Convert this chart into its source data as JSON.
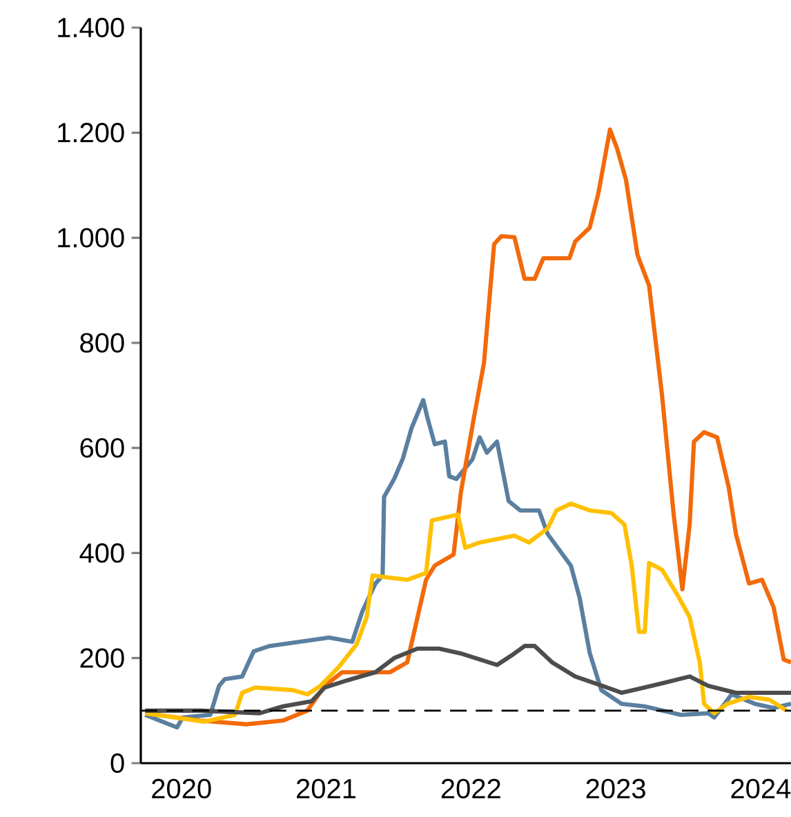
{
  "chart_data": {
    "type": "line",
    "xlim": [
      2019.72,
      2024.21
    ],
    "ylim": [
      0,
      1400
    ],
    "xticks": [
      2020,
      2021,
      2022,
      2023,
      2024
    ],
    "yticks": [
      0,
      200,
      400,
      600,
      800,
      {
        "value": 1000,
        "label": "1.000"
      },
      {
        "value": 1200,
        "label": "1.200"
      },
      {
        "value": 1400,
        "label": "1.400"
      }
    ],
    "grid": false,
    "ref_lines": [
      {
        "axis": "y",
        "value": 100,
        "color": "#000000",
        "line_style": "dashed"
      }
    ],
    "series": [
      {
        "color": "#5a7fa0",
        "x": [
          2019.75,
          2019.97,
          2020.01,
          2020.2,
          2020.26,
          2020.3,
          2020.42,
          2020.5,
          2020.61,
          2021.02,
          2021.18,
          2021.25,
          2021.34,
          2021.39,
          2021.4,
          2021.47,
          2021.53,
          2021.59,
          2021.67,
          2021.7,
          2021.75,
          2021.82,
          2021.85,
          2021.9,
          2022.01,
          2022.06,
          2022.11,
          2022.18,
          2022.26,
          2022.34,
          2022.47,
          2022.53,
          2022.69,
          2022.75,
          2022.82,
          2022.9,
          2023.04,
          2023.2,
          2023.45,
          2023.64,
          2023.68,
          2023.8,
          2023.96,
          2024.09,
          2024.21
        ],
        "values": [
          92,
          68,
          87,
          92,
          147,
          160,
          165,
          213,
          223,
          239,
          231,
          289,
          342,
          357,
          507,
          541,
          580,
          638,
          691,
          657,
          607,
          612,
          546,
          541,
          578,
          620,
          591,
          612,
          499,
          481,
          481,
          436,
          376,
          315,
          210,
          139,
          113,
          108,
          92,
          95,
          87,
          131,
          113,
          105,
          113
        ]
      },
      {
        "color": "#f26a0a",
        "x": [
          2019.75,
          2020.13,
          2020.45,
          2020.7,
          2020.87,
          2020.99,
          2021.11,
          2021.44,
          2021.56,
          2021.69,
          2021.75,
          2021.88,
          2021.93,
          2022.02,
          2022.09,
          2022.16,
          2022.21,
          2022.3,
          2022.37,
          2022.44,
          2022.5,
          2022.68,
          2022.72,
          2022.82,
          2022.88,
          2022.96,
          2023.01,
          2023.07,
          2023.15,
          2023.23,
          2023.32,
          2023.4,
          2023.46,
          2023.51,
          2023.54,
          2023.61,
          2023.7,
          2023.78,
          2023.83,
          2023.92,
          2024.01,
          2024.09,
          2024.16,
          2024.21
        ],
        "values": [
          95,
          81,
          74,
          81,
          100,
          147,
          173,
          173,
          192,
          349,
          376,
          397,
          515,
          657,
          762,
          988,
          1003,
          1001,
          922,
          922,
          961,
          961,
          993,
          1019,
          1085,
          1206,
          1169,
          1111,
          967,
          909,
          699,
          473,
          331,
          454,
          612,
          630,
          620,
          525,
          436,
          342,
          349,
          297,
          197,
          192
        ]
      },
      {
        "color": "#ffc000",
        "x": [
          2019.75,
          2020.16,
          2020.37,
          2020.42,
          2020.51,
          2020.77,
          2020.87,
          2020.96,
          2021.09,
          2021.21,
          2021.28,
          2021.32,
          2021.56,
          2021.69,
          2021.73,
          2021.91,
          2021.96,
          2022.06,
          2022.3,
          2022.4,
          2022.53,
          2022.59,
          2022.69,
          2022.82,
          2022.97,
          2023.06,
          2023.11,
          2023.16,
          2023.2,
          2023.23,
          2023.32,
          2023.42,
          2023.51,
          2023.58,
          2023.61,
          2023.68,
          2023.77,
          2023.92,
          2024.06,
          2024.18
        ],
        "values": [
          95,
          79,
          92,
          134,
          144,
          139,
          131,
          147,
          184,
          226,
          278,
          357,
          349,
          362,
          462,
          473,
          410,
          420,
          433,
          420,
          447,
          481,
          494,
          481,
          476,
          454,
          376,
          250,
          250,
          381,
          368,
          323,
          278,
          192,
          113,
          95,
          113,
          126,
          121,
          100
        ]
      },
      {
        "color": "#4d4d4d",
        "x": [
          2019.75,
          2020.13,
          2020.54,
          2020.7,
          2020.9,
          2020.99,
          2021.15,
          2021.34,
          2021.47,
          2021.63,
          2021.78,
          2021.94,
          2022.18,
          2022.28,
          2022.37,
          2022.44,
          2022.56,
          2022.72,
          2022.91,
          2023.04,
          2023.2,
          2023.32,
          2023.51,
          2023.64,
          2023.83,
          2024.21
        ],
        "values": [
          100,
          100,
          95,
          108,
          118,
          144,
          158,
          173,
          200,
          218,
          218,
          208,
          187,
          205,
          223,
          223,
          192,
          165,
          147,
          134,
          144,
          152,
          165,
          147,
          134,
          134
        ]
      }
    ]
  }
}
